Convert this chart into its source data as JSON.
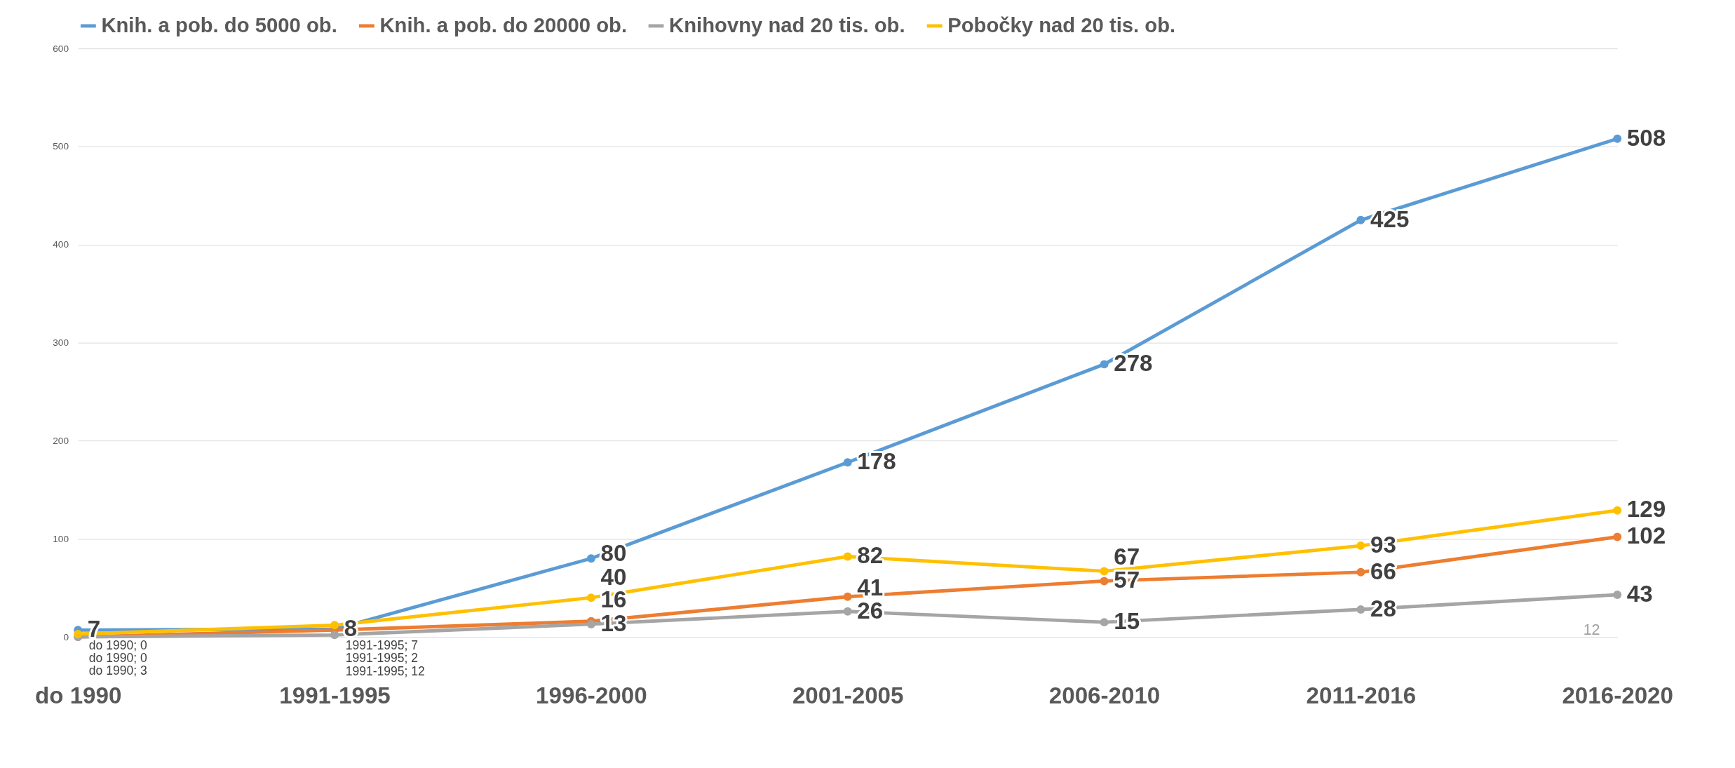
{
  "chart_data": {
    "type": "line",
    "categories": [
      "do 1990",
      "1991-1995",
      "1996-2000",
      "2001-2005",
      "2006-2010",
      "2011-2016",
      "2016-2020"
    ],
    "series": [
      {
        "name": "Knih. a pob. do 5000 ob.",
        "color": "#5b9bd5",
        "values": [
          7,
          8,
          80,
          178,
          278,
          425,
          508
        ],
        "value_labels": [
          "7",
          "8",
          "80",
          "178",
          "278",
          "425",
          "508"
        ]
      },
      {
        "name": "Knih. a pob. do 20000 ob.",
        "color": "#ed7d31",
        "values": [
          0,
          7,
          16,
          41,
          57,
          66,
          102
        ],
        "value_labels": [
          "do 1990; 0",
          "1991-1995; 7",
          "16",
          "41",
          "57",
          "66",
          "102"
        ]
      },
      {
        "name": "Knihovny nad 20 tis. ob.",
        "color": "#a5a5a5",
        "values": [
          0,
          2,
          13,
          26,
          15,
          28,
          43
        ],
        "value_labels": [
          "do 1990; 0",
          "1991-1995; 2",
          "13",
          "26",
          "15",
          "28",
          "43"
        ]
      },
      {
        "name": "Pobočky nad 20 tis. ob.",
        "color": "#ffc000",
        "values": [
          3,
          12,
          40,
          82,
          67,
          93,
          129
        ],
        "value_labels": [
          "do 1990; 3",
          "1991-1995; 12",
          "40",
          "82",
          "67",
          "93",
          "129"
        ]
      }
    ],
    "ylim": [
      0,
      600
    ],
    "yticks": [
      0,
      100,
      200,
      300,
      400,
      500,
      600
    ],
    "grid": "y",
    "legend": "top",
    "marker": "circle",
    "line_style": "solid",
    "annotations": [
      "12"
    ]
  }
}
